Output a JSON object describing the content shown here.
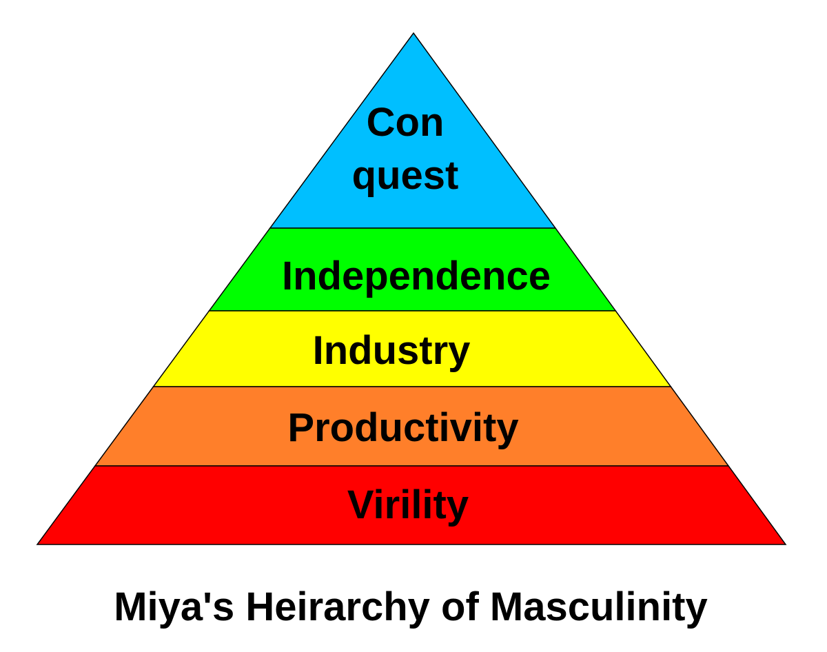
{
  "diagram": {
    "caption": "Miya's Heirarchy of Masculinity",
    "tiers": [
      {
        "id": "conquest",
        "lines": [
          "Con",
          "quest"
        ],
        "color": "#00BFFF"
      },
      {
        "id": "independence",
        "lines": [
          "Independence"
        ],
        "color": "#00FF00"
      },
      {
        "id": "industry",
        "lines": [
          "Industry"
        ],
        "color": "#FFFF00"
      },
      {
        "id": "productivity",
        "lines": [
          "Productivity"
        ],
        "color": "#FF7F2A"
      },
      {
        "id": "virility",
        "lines": [
          "Virility"
        ],
        "color": "#FF0000"
      }
    ]
  }
}
